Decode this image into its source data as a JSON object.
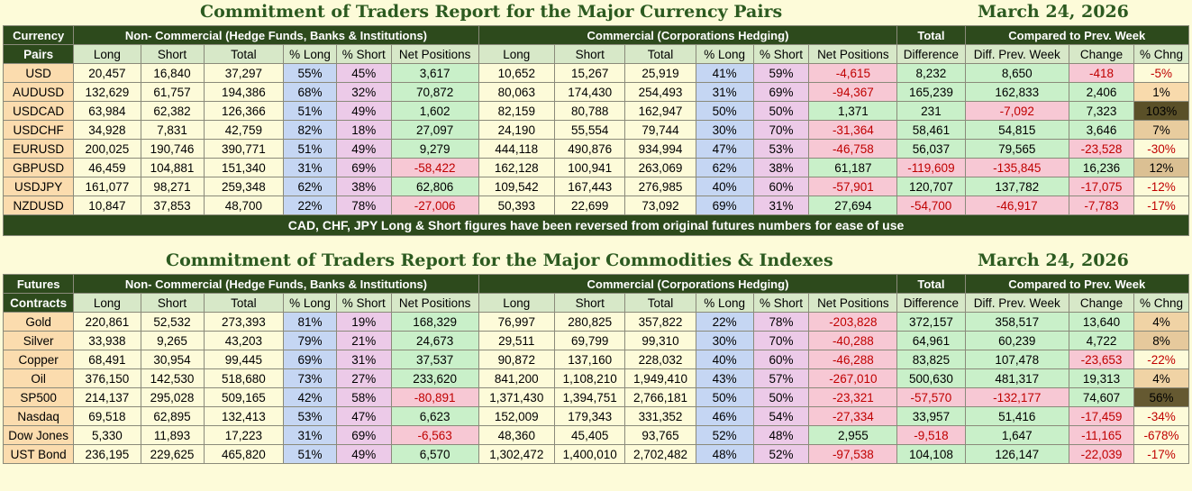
{
  "currency": {
    "title": "Commitment of Traders Report for the Major Currency Pairs",
    "date": "March 24, 2026",
    "group_top": "Currency",
    "group_bottom": "Pairs",
    "noncomm_label": "Non- Commercial (Hedge Funds, Banks & Institutions)",
    "comm_label": "Commercial (Corporations Hedging)",
    "total_label": "Total",
    "diff_label": "Difference",
    "compared_label": "Compared to Prev. Week",
    "columns": [
      "Long",
      "Short",
      "Total",
      "% Long",
      "% Short",
      "Net Positions",
      "Long",
      "Short",
      "Total",
      "% Long",
      "% Short",
      "Net Positions",
      "Diff. Prev. Week",
      "Change",
      "% Chng"
    ],
    "rows": [
      {
        "name": "USD",
        "nc_long": "20,457",
        "nc_short": "16,840",
        "nc_total": "37,297",
        "nc_pl": "55%",
        "nc_ps": "45%",
        "nc_net": "3,617",
        "c_long": "10,652",
        "c_short": "15,267",
        "c_total": "25,919",
        "c_pl": "41%",
        "c_ps": "59%",
        "c_net": "-4,615",
        "diff": "8,232",
        "diff_prev": "8,650",
        "change": "-418",
        "pct": "-5%"
      },
      {
        "name": "AUDUSD",
        "nc_long": "132,629",
        "nc_short": "61,757",
        "nc_total": "194,386",
        "nc_pl": "68%",
        "nc_ps": "32%",
        "nc_net": "70,872",
        "c_long": "80,063",
        "c_short": "174,430",
        "c_total": "254,493",
        "c_pl": "31%",
        "c_ps": "69%",
        "c_net": "-94,367",
        "diff": "165,239",
        "diff_prev": "162,833",
        "change": "2,406",
        "pct": "1%"
      },
      {
        "name": "USDCAD",
        "nc_long": "63,984",
        "nc_short": "62,382",
        "nc_total": "126,366",
        "nc_pl": "51%",
        "nc_ps": "49%",
        "nc_net": "1,602",
        "c_long": "82,159",
        "c_short": "80,788",
        "c_total": "162,947",
        "c_pl": "50%",
        "c_ps": "50%",
        "c_net": "1,371",
        "diff": "231",
        "diff_prev": "-7,092",
        "change": "7,323",
        "pct": "103%"
      },
      {
        "name": "USDCHF",
        "nc_long": "34,928",
        "nc_short": "7,831",
        "nc_total": "42,759",
        "nc_pl": "82%",
        "nc_ps": "18%",
        "nc_net": "27,097",
        "c_long": "24,190",
        "c_short": "55,554",
        "c_total": "79,744",
        "c_pl": "30%",
        "c_ps": "70%",
        "c_net": "-31,364",
        "diff": "58,461",
        "diff_prev": "54,815",
        "change": "3,646",
        "pct": "7%"
      },
      {
        "name": "EURUSD",
        "nc_long": "200,025",
        "nc_short": "190,746",
        "nc_total": "390,771",
        "nc_pl": "51%",
        "nc_ps": "49%",
        "nc_net": "9,279",
        "c_long": "444,118",
        "c_short": "490,876",
        "c_total": "934,994",
        "c_pl": "47%",
        "c_ps": "53%",
        "c_net": "-46,758",
        "diff": "56,037",
        "diff_prev": "79,565",
        "change": "-23,528",
        "pct": "-30%"
      },
      {
        "name": "GBPUSD",
        "nc_long": "46,459",
        "nc_short": "104,881",
        "nc_total": "151,340",
        "nc_pl": "31%",
        "nc_ps": "69%",
        "nc_net": "-58,422",
        "c_long": "162,128",
        "c_short": "100,941",
        "c_total": "263,069",
        "c_pl": "62%",
        "c_ps": "38%",
        "c_net": "61,187",
        "diff": "-119,609",
        "diff_prev": "-135,845",
        "change": "16,236",
        "pct": "12%"
      },
      {
        "name": "USDJPY",
        "nc_long": "161,077",
        "nc_short": "98,271",
        "nc_total": "259,348",
        "nc_pl": "62%",
        "nc_ps": "38%",
        "nc_net": "62,806",
        "c_long": "109,542",
        "c_short": "167,443",
        "c_total": "276,985",
        "c_pl": "40%",
        "c_ps": "60%",
        "c_net": "-57,901",
        "diff": "120,707",
        "diff_prev": "137,782",
        "change": "-17,075",
        "pct": "-12%"
      },
      {
        "name": "NZDUSD",
        "nc_long": "10,847",
        "nc_short": "37,853",
        "nc_total": "48,700",
        "nc_pl": "22%",
        "nc_ps": "78%",
        "nc_net": "-27,006",
        "c_long": "50,393",
        "c_short": "22,699",
        "c_total": "73,092",
        "c_pl": "69%",
        "c_ps": "31%",
        "c_net": "27,694",
        "diff": "-54,700",
        "diff_prev": "-46,917",
        "change": "-7,783",
        "pct": "-17%"
      }
    ],
    "note": "CAD, CHF, JPY Long & Short figures have been reversed from original futures numbers for ease of use"
  },
  "commodities": {
    "title": "Commitment of Traders Report for the Major Commodities & Indexes",
    "date": "March 24, 2026",
    "group_top": "Futures",
    "group_bottom": "Contracts",
    "noncomm_label": "Non- Commercial (Hedge Funds, Banks & Institutions)",
    "comm_label": "Commercial (Corporations Hedging)",
    "total_label": "Total",
    "diff_label": "Difference",
    "compared_label": "Compared to Prev. Week",
    "columns": [
      "Long",
      "Short",
      "Total",
      "% Long",
      "% Short",
      "Net Positions",
      "Long",
      "Short",
      "Total",
      "% Long",
      "% Short",
      "Net Positions",
      "Diff. Prev. Week",
      "Change",
      "% Chng"
    ],
    "rows": [
      {
        "name": "Gold",
        "nc_long": "220,861",
        "nc_short": "52,532",
        "nc_total": "273,393",
        "nc_pl": "81%",
        "nc_ps": "19%",
        "nc_net": "168,329",
        "c_long": "76,997",
        "c_short": "280,825",
        "c_total": "357,822",
        "c_pl": "22%",
        "c_ps": "78%",
        "c_net": "-203,828",
        "diff": "372,157",
        "diff_prev": "358,517",
        "change": "13,640",
        "pct": "4%"
      },
      {
        "name": "Silver",
        "nc_long": "33,938",
        "nc_short": "9,265",
        "nc_total": "43,203",
        "nc_pl": "79%",
        "nc_ps": "21%",
        "nc_net": "24,673",
        "c_long": "29,511",
        "c_short": "69,799",
        "c_total": "99,310",
        "c_pl": "30%",
        "c_ps": "70%",
        "c_net": "-40,288",
        "diff": "64,961",
        "diff_prev": "60,239",
        "change": "4,722",
        "pct": "8%"
      },
      {
        "name": "Copper",
        "nc_long": "68,491",
        "nc_short": "30,954",
        "nc_total": "99,445",
        "nc_pl": "69%",
        "nc_ps": "31%",
        "nc_net": "37,537",
        "c_long": "90,872",
        "c_short": "137,160",
        "c_total": "228,032",
        "c_pl": "40%",
        "c_ps": "60%",
        "c_net": "-46,288",
        "diff": "83,825",
        "diff_prev": "107,478",
        "change": "-23,653",
        "pct": "-22%"
      },
      {
        "name": "Oil",
        "nc_long": "376,150",
        "nc_short": "142,530",
        "nc_total": "518,680",
        "nc_pl": "73%",
        "nc_ps": "27%",
        "nc_net": "233,620",
        "c_long": "841,200",
        "c_short": "1,108,210",
        "c_total": "1,949,410",
        "c_pl": "43%",
        "c_ps": "57%",
        "c_net": "-267,010",
        "diff": "500,630",
        "diff_prev": "481,317",
        "change": "19,313",
        "pct": "4%"
      },
      {
        "name": "SP500",
        "nc_long": "214,137",
        "nc_short": "295,028",
        "nc_total": "509,165",
        "nc_pl": "42%",
        "nc_ps": "58%",
        "nc_net": "-80,891",
        "c_long": "1,371,430",
        "c_short": "1,394,751",
        "c_total": "2,766,181",
        "c_pl": "50%",
        "c_ps": "50%",
        "c_net": "-23,321",
        "diff": "-57,570",
        "diff_prev": "-132,177",
        "change": "74,607",
        "pct": "56%"
      },
      {
        "name": "Nasdaq",
        "nc_long": "69,518",
        "nc_short": "62,895",
        "nc_total": "132,413",
        "nc_pl": "53%",
        "nc_ps": "47%",
        "nc_net": "6,623",
        "c_long": "152,009",
        "c_short": "179,343",
        "c_total": "331,352",
        "c_pl": "46%",
        "c_ps": "54%",
        "c_net": "-27,334",
        "diff": "33,957",
        "diff_prev": "51,416",
        "change": "-17,459",
        "pct": "-34%"
      },
      {
        "name": "Dow Jones",
        "nc_long": "5,330",
        "nc_short": "11,893",
        "nc_total": "17,223",
        "nc_pl": "31%",
        "nc_ps": "69%",
        "nc_net": "-6,563",
        "c_long": "48,360",
        "c_short": "45,405",
        "c_total": "93,765",
        "c_pl": "52%",
        "c_ps": "48%",
        "c_net": "2,955",
        "diff": "-9,518",
        "diff_prev": "1,647",
        "change": "-11,165",
        "pct": "-678%"
      },
      {
        "name": "UST Bond",
        "nc_long": "236,195",
        "nc_short": "229,625",
        "nc_total": "465,820",
        "nc_pl": "51%",
        "nc_ps": "49%",
        "nc_net": "6,570",
        "c_long": "1,302,472",
        "c_short": "1,400,010",
        "c_total": "2,702,482",
        "c_pl": "48%",
        "c_ps": "52%",
        "c_net": "-97,538",
        "diff": "104,108",
        "diff_prev": "126,147",
        "change": "-22,039",
        "pct": "-17%"
      }
    ]
  },
  "colors": {
    "header_bg": "#2d4a1c",
    "subheader_bg": "#d7e8c8",
    "name_bg": "#fbdcae",
    "long_pct_bg": "#c5d6f3",
    "short_pct_bg": "#eccae8",
    "positive_bg": "#c9f0c9",
    "negative_bg": "#f7c8d4",
    "title_color": "#2c5a20",
    "negative_text": "#c00000"
  }
}
